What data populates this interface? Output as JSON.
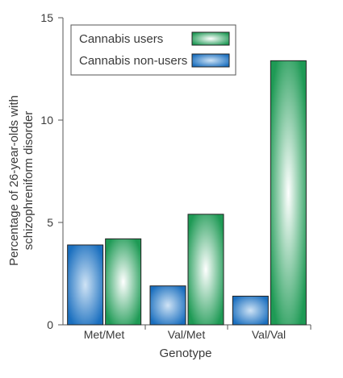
{
  "chart_data": {
    "type": "bar",
    "title": "",
    "xlabel": "Genotype",
    "ylabel": [
      "Percentage of 26-year-olds with",
      "schizophreniform disorder"
    ],
    "categories": [
      "Met/Met",
      "Val/Met",
      "Val/Val"
    ],
    "ylim": [
      0,
      15
    ],
    "yticks": [
      "0",
      "5",
      "10",
      "15"
    ],
    "legend_position": "top-left",
    "grid": false,
    "series": [
      {
        "name": "Cannabis non-users",
        "values": [
          3.9,
          1.9,
          1.4
        ],
        "color": "#1a6fbf",
        "highlight": "#cfe3f5"
      },
      {
        "name": "Cannabis users",
        "values": [
          4.2,
          5.4,
          12.9
        ],
        "color": "#1e9a55",
        "highlight": "#ffffff"
      }
    ]
  }
}
